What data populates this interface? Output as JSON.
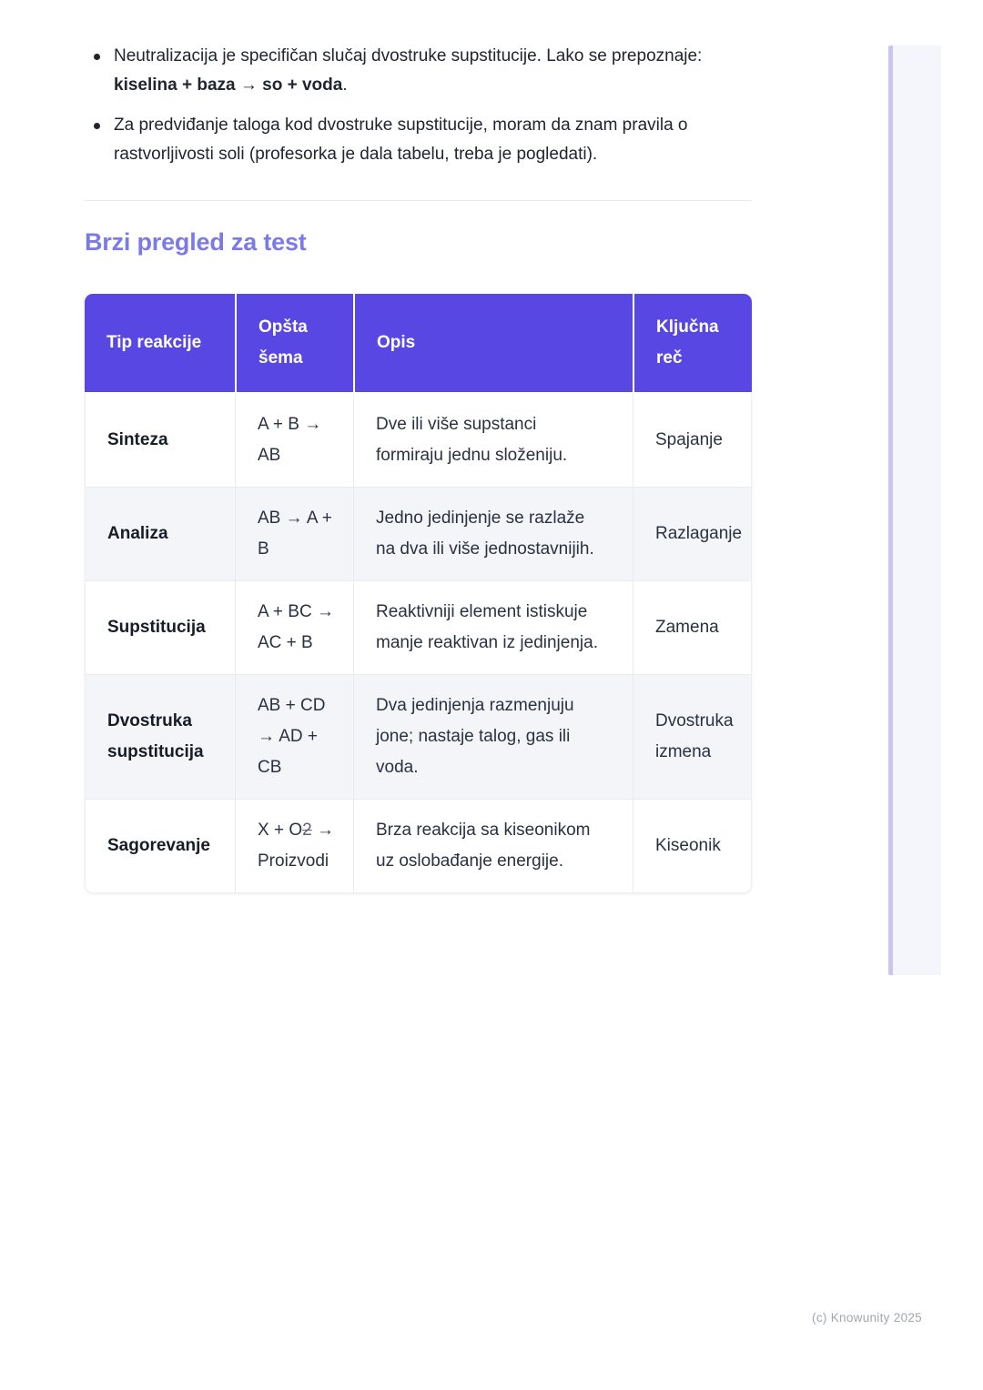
{
  "colors": {
    "table_header_bg": "#5847e2",
    "section_title": "#7c79e8",
    "alt_row_bg": "#f3f5f9",
    "edge_line": "#cac5ed",
    "edge_panel": "#f4f6fb",
    "body_text": "#20252f",
    "footer_text": "#a1a6ae"
  },
  "notes": {
    "bullets": [
      {
        "pre": "Neutralizacija je specifičan slučaj dvostruke supstitucije. Lako se prepoznaje: ",
        "bold": "kiselina + baza → so + voda",
        "post": "."
      },
      {
        "pre": "Za predviđanje taloga kod dvostruke supstitucije, moram da znam pravila o rastvorljivosti soli (profesorka je dala tabelu, treba je pogledati).",
        "bold": "",
        "post": ""
      }
    ]
  },
  "section": {
    "title": "Brzi pregled za test"
  },
  "table": {
    "headers": [
      "Tip reakcije",
      [
        "Opšta",
        "šema"
      ],
      "Opis",
      [
        "Ključna",
        "reč"
      ]
    ],
    "rows": [
      {
        "type": "Sinteza",
        "formula": [
          "A + B →",
          "AB"
        ],
        "desc": [
          "Dve ili više supstanci",
          "formiraju jednu složeniju."
        ],
        "key": "Spajanje"
      },
      {
        "type": "Analiza",
        "formula": [
          "AB → A +",
          "B"
        ],
        "desc": [
          "Jedno jedinjenje se razlaže",
          "na dva ili više jednostavnijih."
        ],
        "key": "Razlaganje"
      },
      {
        "type": "Supstitucija",
        "formula": [
          "A + BC →",
          "AC + B"
        ],
        "desc": [
          "Reaktivniji element istiskuje",
          "manje reaktivan iz jedinjenja."
        ],
        "key": "Zamena"
      },
      {
        "type": [
          "Dvostruka",
          "supstitucija"
        ],
        "formula": [
          "AB + CD",
          "→ AD +",
          "CB"
        ],
        "desc": [
          "Dva jedinjenja razmenjuju",
          "jone; nastaje talog, gas ili",
          "voda."
        ],
        "key": [
          "Dvostruka",
          "izmena"
        ]
      },
      {
        "type": "Sagorevanje",
        "formula_pre": "X + O",
        "formula_struck": "2",
        "formula_post": " →",
        "formula_line2": "Proizvodi",
        "desc": [
          "Brza reakcija sa kiseonikom",
          "uz oslobađanje energije."
        ],
        "key": "Kiseonik"
      }
    ]
  },
  "footer": {
    "credit": "(c) Knowunity 2025"
  }
}
